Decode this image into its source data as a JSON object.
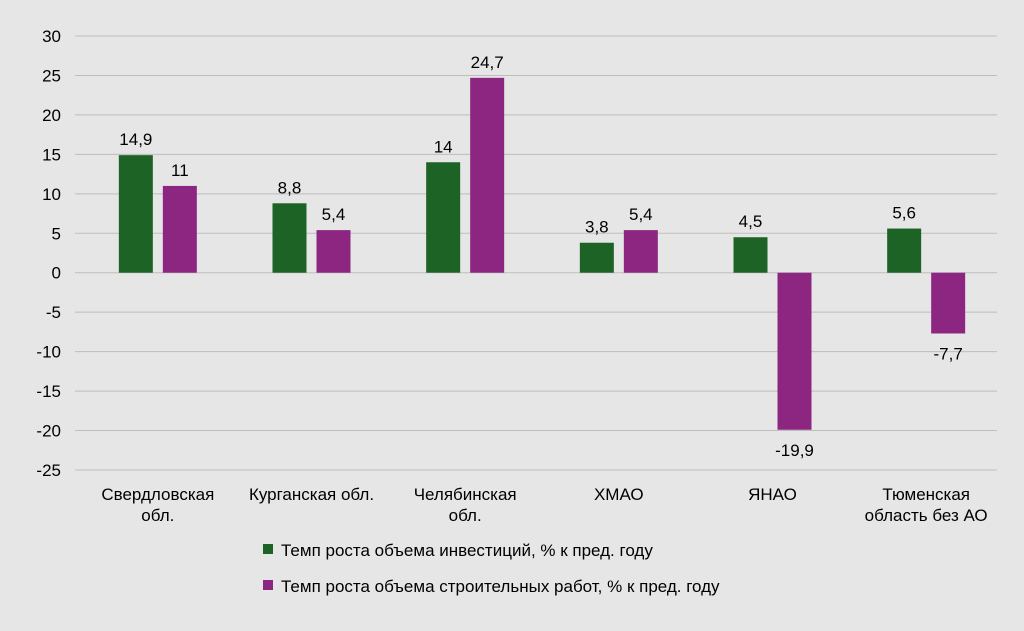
{
  "chart_data": {
    "type": "bar",
    "title": "",
    "xlabel": "",
    "ylabel": "",
    "ylim": [
      -25,
      30
    ],
    "yticks": [
      30,
      25,
      20,
      15,
      10,
      5,
      0,
      -5,
      -10,
      -15,
      -20,
      -25
    ],
    "grid": true,
    "legend_position": "bottom",
    "categories": [
      [
        "Свердловская",
        "обл."
      ],
      [
        "Курганская обл."
      ],
      [
        "Челябинская",
        "обл."
      ],
      [
        "ХМАО"
      ],
      [
        "ЯНАО"
      ],
      [
        "Тюменская",
        "область без АО"
      ]
    ],
    "series": [
      {
        "name": "Темп роста объема инвестиций, % к пред. году",
        "color": "#1e6326",
        "values": [
          14.9,
          8.8,
          14,
          3.8,
          4.5,
          5.6
        ],
        "labels": [
          "14,9",
          "8,8",
          "14",
          "3,8",
          "4,5",
          "5,6"
        ]
      },
      {
        "name": "Темп роста объема строительных работ, % к пред. году",
        "color": "#8c2681",
        "values": [
          11,
          5.4,
          24.7,
          5.4,
          -19.9,
          -7.7
        ],
        "labels": [
          "11",
          "5,4",
          "24,7",
          "5,4",
          "-19,9",
          "-7,7"
        ]
      }
    ]
  }
}
